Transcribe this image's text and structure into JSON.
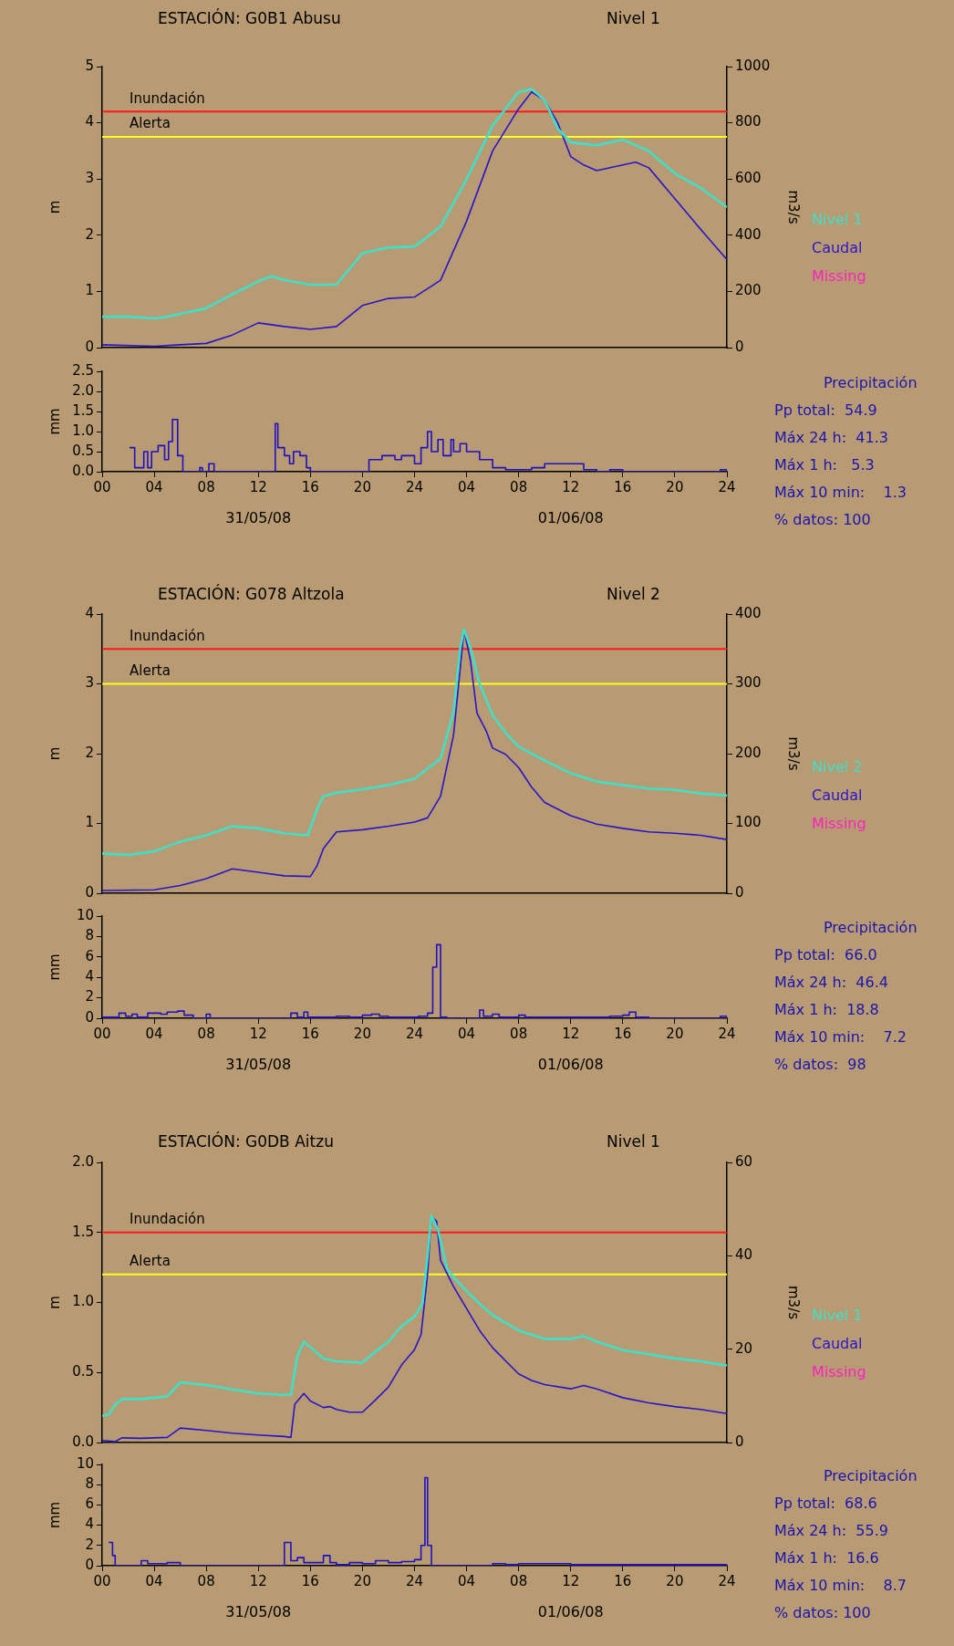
{
  "chart_data": [
    {
      "type": "line",
      "title": "ESTACIÓN: G0B1 Abusu",
      "subtitle": "Nivel 1",
      "ylabel": "m",
      "y2label": "m3/s",
      "legend": "right",
      "tick_labels": "y",
      "xlim": [
        "--05-31T00:00",
        "--06-02T00:00"
      ],
      "ylim": [
        0,
        5
      ],
      "yticks": [
        0,
        1,
        2,
        3,
        4,
        5
      ],
      "y2lim": [
        0,
        1000
      ],
      "y2ticks": [
        0,
        200,
        400,
        600,
        800,
        1000
      ],
      "ref_lines": [
        {
          "axis": "y",
          "value": 4.2,
          "label": "Inundación",
          "color": "#ff1a1a"
        },
        {
          "axis": "y",
          "value": 3.75,
          "label": "Alerta",
          "color": "#ffff20"
        }
      ],
      "series": [
        {
          "name": "Nivel 1",
          "color": "#3ee0c8",
          "x": [
            "--05-31T00:00",
            "--05-31T02:00",
            "--05-31T04:00",
            "--05-31T05:00",
            "--05-31T06:00",
            "--05-31T08:00",
            "--05-31T10:00",
            "--05-31T12:00",
            "--05-31T13:00",
            "--05-31T14:00",
            "--05-31T16:00",
            "--05-31T18:00",
            "--05-31T19:00",
            "--05-31T20:00",
            "--05-31T22:00",
            "--06-01T00:00",
            "--06-01T02:00",
            "--06-01T04:00",
            "--06-01T06:00",
            "--06-01T08:00",
            "--06-01T09:00",
            "--06-01T10:00",
            "--06-01T11:00",
            "--06-01T12:00",
            "--06-01T14:00",
            "--06-01T16:00",
            "--06-01T18:00",
            "--06-01T20:00",
            "--06-01T22:00",
            "--06-02T00:00"
          ],
          "values": [
            0.55,
            0.55,
            0.52,
            0.55,
            0.6,
            0.7,
            0.95,
            1.18,
            1.27,
            1.2,
            1.12,
            1.12,
            1.4,
            1.68,
            1.78,
            1.8,
            2.15,
            3.0,
            3.95,
            4.55,
            4.6,
            4.4,
            3.9,
            3.65,
            3.6,
            3.7,
            3.5,
            3.1,
            2.84,
            2.5
          ]
        },
        {
          "name": "Caudal",
          "color": "#2a14c8",
          "axis": "y2",
          "x": [
            "--05-31T00:00",
            "--05-31T04:00",
            "--05-31T06:00",
            "--05-31T08:00",
            "--05-31T10:00",
            "--05-31T12:00",
            "--05-31T14:00",
            "--05-31T16:00",
            "--05-31T18:00",
            "--05-31T20:00",
            "--05-31T22:00",
            "--06-01T00:00",
            "--06-01T02:00",
            "--06-01T04:00",
            "--06-01T06:00",
            "--06-01T08:00",
            "--06-01T09:00",
            "--06-01T10:00",
            "--06-01T11:00",
            "--06-01T12:00",
            "--06-01T13:00",
            "--06-01T14:00",
            "--06-01T16:00",
            "--06-01T17:00",
            "--06-01T18:00",
            "--06-01T20:00",
            "--06-01T22:00",
            "--06-02T00:00"
          ],
          "values": [
            10,
            5,
            10,
            15,
            45,
            88,
            75,
            65,
            75,
            150,
            175,
            180,
            240,
            450,
            700,
            850,
            910,
            880,
            800,
            680,
            650,
            630,
            650,
            660,
            640,
            530,
            420,
            313
          ]
        },
        {
          "name": "Missing",
          "color": "#ff20c0"
        }
      ]
    },
    {
      "type": "step",
      "ylabel": "mm",
      "color": "#2010c0",
      "xlim": [
        "--05-31T00:00",
        "--06-02T00:00"
      ],
      "xticks": [
        {
          "value": "--05-31T00:00",
          "label": "00"
        },
        {
          "value": "--05-31T04:00",
          "label": "04"
        },
        {
          "value": "--05-31T08:00",
          "label": "08"
        },
        {
          "value": "--05-31T12:00",
          "label": "12"
        },
        {
          "value": "--05-31T16:00",
          "label": "16"
        },
        {
          "value": "--05-31T20:00",
          "label": "20"
        },
        {
          "value": "--06-01T00:00",
          "label": "24"
        },
        {
          "value": "--06-01T04:00",
          "label": "04"
        },
        {
          "value": "--06-01T08:00",
          "label": "08"
        },
        {
          "value": "--06-01T12:00",
          "label": "12"
        },
        {
          "value": "--06-01T16:00",
          "label": "16"
        },
        {
          "value": "--06-01T20:00",
          "label": "20"
        },
        {
          "value": "--06-02T00:00",
          "label": "24"
        }
      ],
      "ylim": [
        0,
        2.5
      ],
      "yticks": [
        {
          "value": 0,
          "label": "0.0"
        },
        0.5,
        {
          "value": 1,
          "label": "1.0"
        },
        1.5,
        {
          "value": 2,
          "label": "2.0"
        },
        2.5
      ],
      "x": [
        "--05-31T02:06",
        "--05-31T02:30",
        "--05-31T03:12",
        "--05-31T03:30",
        "--05-31T03:48",
        "--05-31T04:18",
        "--05-31T04:48",
        "--05-31T05:06",
        "--05-31T05:24",
        "--05-31T05:48",
        "--05-31T06:12",
        "--05-31T07:30",
        "--05-31T07:42",
        "--05-31T08:12",
        "--05-31T08:36",
        "--05-31T13:18",
        "--05-31T13:30",
        "--05-31T14:00",
        "--05-31T14:24",
        "--05-31T14:42",
        "--05-31T15:12",
        "--05-31T15:42",
        "--05-31T16:00",
        "--05-31T20:30",
        "--05-31T21:30",
        "--05-31T22:30",
        "--05-31T23:00",
        "--06-01T00:00",
        "--06-01T00:30",
        "--06-01T01:00",
        "--06-01T01:18",
        "--06-01T01:48",
        "--06-01T02:12",
        "--06-01T02:48",
        "--06-01T03:00",
        "--06-01T03:30",
        "--06-01T04:00",
        "--06-01T05:00",
        "--06-01T06:00",
        "--06-01T07:00",
        "--06-01T09:00",
        "--06-01T10:00",
        "--06-01T13:00",
        "--06-01T14:00",
        "--06-01T15:00",
        "--06-01T16:00",
        "--06-01T23:30",
        "--06-02T00:00"
      ],
      "values": [
        0.6,
        0.1,
        0.5,
        0.1,
        0.5,
        0.65,
        0.3,
        0.75,
        1.3,
        0.4,
        0,
        0.1,
        0,
        0.2,
        0,
        1.2,
        0.6,
        0.4,
        0.2,
        0.5,
        0.4,
        0.1,
        0,
        0.3,
        0.4,
        0.3,
        0.4,
        0.2,
        0.6,
        1.0,
        0.5,
        0.8,
        0.4,
        0.8,
        0.5,
        0.7,
        0.5,
        0.3,
        0.1,
        0.05,
        0.1,
        0.2,
        0.05,
        0,
        0.05,
        0,
        0.05,
        0
      ],
      "annotations": [
        "31/05/08",
        "01/06/08"
      ]
    },
    {
      "type": "other",
      "title": "Precipitación",
      "annotations": [
        "Pp total:  54.9",
        "Máx 24 h:  41.3",
        "Máx 1 h:   5.3",
        "Máx 10 min:    1.3",
        "% datos: 100"
      ]
    },
    {
      "type": "line",
      "title": "ESTACIÓN: G078 Altzola",
      "subtitle": "Nivel 2",
      "ylabel": "m",
      "y2label": "m3/s",
      "legend": "right",
      "tick_labels": "y",
      "xlim": [
        "--05-31T00:00",
        "--06-02T00:00"
      ],
      "ylim": [
        0,
        4
      ],
      "yticks": [
        0,
        1,
        2,
        3,
        4
      ],
      "y2lim": [
        0,
        400
      ],
      "y2ticks": [
        0,
        100,
        200,
        300,
        400
      ],
      "ref_lines": [
        {
          "axis": "y",
          "value": 3.5,
          "label": "Inundación",
          "color": "#ff1a1a"
        },
        {
          "axis": "y",
          "value": 3.0,
          "label": "Alerta",
          "color": "#ffff20"
        }
      ],
      "series": [
        {
          "name": "Nivel 2",
          "color": "#3ee0c8",
          "x": [
            "--05-31T00:00",
            "--05-31T02:00",
            "--05-31T04:00",
            "--05-31T06:00",
            "--05-31T08:00",
            "--05-31T10:00",
            "--05-31T12:00",
            "--05-31T14:00",
            "--05-31T15:48",
            "--05-31T16:30",
            "--05-31T17:00",
            "--05-31T18:00",
            "--05-31T20:00",
            "--05-31T22:00",
            "--06-01T00:00",
            "--06-01T02:00",
            "--06-01T03:00",
            "--06-01T03:30",
            "--06-01T03:48",
            "--06-01T04:18",
            "--06-01T05:00",
            "--06-01T06:00",
            "--06-01T07:00",
            "--06-01T08:00",
            "--06-01T10:00",
            "--06-01T12:00",
            "--06-01T14:00",
            "--06-01T16:00",
            "--06-01T18:00",
            "--06-01T20:00",
            "--06-01T22:00",
            "--06-02T00:00"
          ],
          "values": [
            0.57,
            0.55,
            0.6,
            0.74,
            0.83,
            0.96,
            0.93,
            0.86,
            0.83,
            1.2,
            1.39,
            1.44,
            1.49,
            1.55,
            1.64,
            1.93,
            2.6,
            3.5,
            3.78,
            3.52,
            3.0,
            2.55,
            2.3,
            2.1,
            1.9,
            1.72,
            1.6,
            1.55,
            1.5,
            1.48,
            1.43,
            1.4
          ]
        },
        {
          "name": "Caudal",
          "color": "#2a14c8",
          "axis": "y2",
          "x": [
            "--05-31T00:00",
            "--05-31T04:00",
            "--05-31T06:00",
            "--05-31T08:00",
            "--05-31T10:00",
            "--05-31T12:00",
            "--05-31T14:00",
            "--05-31T16:00",
            "--05-31T16:30",
            "--05-31T17:00",
            "--05-31T18:00",
            "--05-31T20:00",
            "--05-31T22:00",
            "--06-01T00:00",
            "--06-01T01:00",
            "--06-01T02:00",
            "--06-01T03:00",
            "--06-01T03:30",
            "--06-01T03:48",
            "--06-01T04:18",
            "--06-01T04:48",
            "--06-01T05:30",
            "--06-01T06:00",
            "--06-01T07:00",
            "--06-01T08:00",
            "--06-01T09:00",
            "--06-01T10:00",
            "--06-01T12:00",
            "--06-01T14:00",
            "--06-01T16:00",
            "--06-01T18:00",
            "--06-01T20:00",
            "--06-01T22:00",
            "--06-02T00:00"
          ],
          "values": [
            4,
            5,
            11,
            21,
            35,
            30,
            25,
            24,
            39,
            64,
            88,
            91,
            96,
            102,
            108,
            139,
            227,
            320,
            378,
            333,
            258,
            233,
            208,
            199,
            180,
            152,
            130,
            111,
            99,
            93,
            88,
            86,
            83,
            77
          ]
        },
        {
          "name": "Missing",
          "color": "#ff20c0"
        }
      ]
    },
    {
      "type": "step",
      "ylabel": "mm",
      "color": "#2010c0",
      "xlim": [
        "--05-31T00:00",
        "--06-02T00:00"
      ],
      "xticks": [
        {
          "value": "--05-31T00:00",
          "label": "00"
        },
        {
          "value": "--05-31T04:00",
          "label": "04"
        },
        {
          "value": "--05-31T08:00",
          "label": "08"
        },
        {
          "value": "--05-31T12:00",
          "label": "12"
        },
        {
          "value": "--05-31T16:00",
          "label": "16"
        },
        {
          "value": "--05-31T20:00",
          "label": "20"
        },
        {
          "value": "--06-01T00:00",
          "label": "24"
        },
        {
          "value": "--06-01T04:00",
          "label": "04"
        },
        {
          "value": "--06-01T08:00",
          "label": "08"
        },
        {
          "value": "--06-01T12:00",
          "label": "12"
        },
        {
          "value": "--06-01T16:00",
          "label": "16"
        },
        {
          "value": "--06-01T20:00",
          "label": "20"
        },
        {
          "value": "--06-02T00:00",
          "label": "24"
        }
      ],
      "ylim": [
        0,
        10
      ],
      "yticks": [
        0,
        2,
        4,
        6,
        8,
        10
      ],
      "x": [
        "--05-31T00:00",
        "--05-31T01:18",
        "--05-31T01:48",
        "--05-31T02:18",
        "--05-31T02:42",
        "--05-31T03:30",
        "--05-31T04:30",
        "--05-31T05:00",
        "--05-31T05:48",
        "--05-31T06:18",
        "--05-31T07:00",
        "--05-31T08:00",
        "--05-31T08:18",
        "--05-31T14:30",
        "--05-31T15:00",
        "--05-31T15:30",
        "--05-31T15:48",
        "--05-31T17:00",
        "--05-31T18:00",
        "--05-31T19:00",
        "--05-31T20:00",
        "--05-31T20:42",
        "--05-31T21:18",
        "--05-31T22:00",
        "--05-31T23:30",
        "--06-01T00:18",
        "--06-01T01:00",
        "--06-01T01:24",
        "--06-01T01:42",
        "--06-01T02:00",
        "--06-01T02:30",
        "--06-01T05:00",
        "--06-01T05:18",
        "--06-01T06:00",
        "--06-01T06:30",
        "--06-01T08:00",
        "--06-01T08:30",
        "--06-01T10:00",
        "--06-01T12:00",
        "--06-01T15:00",
        "--06-01T16:00",
        "--06-01T16:30",
        "--06-01T17:00",
        "--06-01T18:00",
        "--06-01T23:30",
        "--06-02T00:00"
      ],
      "values": [
        0.1,
        0.5,
        0.2,
        0.4,
        0.1,
        0.5,
        0.4,
        0.6,
        0.7,
        0.3,
        0,
        0.4,
        0,
        0.5,
        0.1,
        0.6,
        0.1,
        0.1,
        0.2,
        0.1,
        0.3,
        0.4,
        0.2,
        0.1,
        0.1,
        0.2,
        0.5,
        5.0,
        7.2,
        0.1,
        0,
        0.8,
        0.2,
        0.4,
        0.1,
        0.3,
        0.1,
        0.1,
        0.1,
        0.2,
        0.3,
        0.6,
        0.1,
        0,
        0.2,
        0
      ],
      "annotations": [
        "31/05/08",
        "01/06/08"
      ]
    },
    {
      "type": "other",
      "title": "Precipitación",
      "annotations": [
        "Pp total:  66.0",
        "Máx 24 h:  46.4",
        "Máx 1 h:  18.8",
        "Máx 10 min:    7.2",
        "% datos:  98"
      ]
    },
    {
      "type": "line",
      "title": "ESTACIÓN: G0DB Aitzu",
      "subtitle": "Nivel 1",
      "ylabel": "m",
      "y2label": "m3/s",
      "legend": "right",
      "tick_labels": "y",
      "xlim": [
        "--05-31T00:00",
        "--06-02T00:00"
      ],
      "ylim": [
        0,
        2
      ],
      "yticks": [
        {
          "value": 0,
          "label": "0.0"
        },
        0.5,
        {
          "value": 1,
          "label": "1.0"
        },
        1.5,
        {
          "value": 2,
          "label": "2.0"
        }
      ],
      "y2lim": [
        0,
        60
      ],
      "y2ticks": [
        0,
        20,
        40,
        60
      ],
      "ref_lines": [
        {
          "axis": "y",
          "value": 1.5,
          "label": "Inundación",
          "color": "#ff1a1a"
        },
        {
          "axis": "y",
          "value": 1.2,
          "label": "Alerta",
          "color": "#ffff20"
        }
      ],
      "series": [
        {
          "name": "Nivel 1",
          "color": "#3ee0c8",
          "x": [
            "--05-31T00:00",
            "--05-31T00:30",
            "--05-31T01:00",
            "--05-31T01:30",
            "--05-31T03:00",
            "--05-31T05:00",
            "--05-31T06:00",
            "--05-31T08:00",
            "--05-31T10:00",
            "--05-31T12:00",
            "--05-31T14:00",
            "--05-31T14:30",
            "--05-31T15:00",
            "--05-31T15:30",
            "--05-31T16:00",
            "--05-31T17:00",
            "--05-31T18:00",
            "--05-31T20:00",
            "--05-31T21:00",
            "--05-31T22:00",
            "--05-31T23:00",
            "--06-01T00:00",
            "--06-01T00:36",
            "--06-01T01:00",
            "--06-01T01:18",
            "--06-01T01:48",
            "--06-01T02:30",
            "--06-01T03:00",
            "--06-01T04:00",
            "--06-01T05:00",
            "--06-01T06:00",
            "--06-01T08:00",
            "--06-01T10:00",
            "--06-01T12:00",
            "--06-01T13:00",
            "--06-01T14:00",
            "--06-01T16:00",
            "--06-01T18:00",
            "--06-01T20:00",
            "--06-01T22:00",
            "--06-02T00:00"
          ],
          "values": [
            0.19,
            0.2,
            0.27,
            0.31,
            0.31,
            0.33,
            0.43,
            0.41,
            0.38,
            0.35,
            0.34,
            0.34,
            0.62,
            0.72,
            0.68,
            0.6,
            0.58,
            0.57,
            0.65,
            0.72,
            0.83,
            0.9,
            0.99,
            1.33,
            1.62,
            1.52,
            1.24,
            1.18,
            1.08,
            0.99,
            0.91,
            0.8,
            0.74,
            0.74,
            0.76,
            0.72,
            0.66,
            0.63,
            0.6,
            0.58,
            0.55
          ]
        },
        {
          "name": "Caudal",
          "color": "#2a14c8",
          "axis": "y2",
          "x": [
            "--05-31T00:00",
            "--05-31T01:00",
            "--05-31T01:30",
            "--05-31T03:00",
            "--05-31T05:00",
            "--05-31T06:00",
            "--05-31T08:00",
            "--05-31T10:00",
            "--05-31T12:00",
            "--05-31T14:00",
            "--05-31T14:30",
            "--05-31T14:48",
            "--05-31T15:30",
            "--05-31T16:00",
            "--05-31T17:00",
            "--05-31T17:30",
            "--05-31T18:00",
            "--05-31T19:00",
            "--05-31T20:00",
            "--05-31T21:00",
            "--05-31T22:00",
            "--05-31T23:00",
            "--06-01T00:00",
            "--06-01T00:30",
            "--06-01T01:00",
            "--06-01T01:18",
            "--06-01T01:42",
            "--06-01T02:00",
            "--06-01T03:00",
            "--06-01T04:00",
            "--06-01T05:00",
            "--06-01T06:00",
            "--06-01T07:00",
            "--06-01T08:00",
            "--06-01T09:00",
            "--06-01T10:00",
            "--06-01T12:00",
            "--06-01T13:00",
            "--06-01T14:00",
            "--06-01T16:00",
            "--06-01T18:00",
            "--06-01T20:00",
            "--06-01T22:00",
            "--06-02T00:00"
          ],
          "values": [
            0.5,
            0.2,
            1.0,
            0.9,
            1.1,
            3.1,
            2.6,
            2.0,
            1.6,
            1.3,
            1.1,
            8.2,
            10.5,
            8.9,
            7.5,
            7.7,
            7.1,
            6.5,
            6.5,
            9.1,
            11.9,
            16.6,
            19.9,
            23.1,
            36,
            48.3,
            47.4,
            39,
            33.4,
            28.7,
            24,
            20.3,
            17.5,
            14.7,
            13.3,
            12.4,
            11.5,
            12.2,
            11.5,
            9.6,
            8.5,
            7.7,
            7.1,
            6.2
          ]
        },
        {
          "name": "Missing",
          "color": "#ff20c0"
        }
      ]
    },
    {
      "type": "step",
      "ylabel": "mm",
      "color": "#2010c0",
      "xlim": [
        "--05-31T00:00",
        "--06-02T00:00"
      ],
      "xticks": [
        {
          "value": "--05-31T00:00",
          "label": "00"
        },
        {
          "value": "--05-31T04:00",
          "label": "04"
        },
        {
          "value": "--05-31T08:00",
          "label": "08"
        },
        {
          "value": "--05-31T12:00",
          "label": "12"
        },
        {
          "value": "--05-31T16:00",
          "label": "16"
        },
        {
          "value": "--05-31T20:00",
          "label": "20"
        },
        {
          "value": "--06-01T00:00",
          "label": "24"
        },
        {
          "value": "--06-01T04:00",
          "label": "04"
        },
        {
          "value": "--06-01T08:00",
          "label": "08"
        },
        {
          "value": "--06-01T12:00",
          "label": "12"
        },
        {
          "value": "--06-01T16:00",
          "label": "16"
        },
        {
          "value": "--06-01T20:00",
          "label": "20"
        },
        {
          "value": "--06-02T00:00",
          "label": "24"
        }
      ],
      "ylim": [
        0,
        10
      ],
      "yticks": [
        0,
        2,
        4,
        6,
        8,
        10
      ],
      "x": [
        "--05-31T00:30",
        "--05-31T00:48",
        "--05-31T01:00",
        "--05-31T03:00",
        "--05-31T03:30",
        "--05-31T05:00",
        "--05-31T06:00",
        "--05-31T14:00",
        "--05-31T14:30",
        "--05-31T15:00",
        "--05-31T15:30",
        "--05-31T16:00",
        "--05-31T17:00",
        "--05-31T17:30",
        "--05-31T18:00",
        "--05-31T19:00",
        "--05-31T20:00",
        "--05-31T21:00",
        "--05-31T22:00",
        "--05-31T23:00",
        "--06-01T00:00",
        "--06-01T00:30",
        "--06-01T00:48",
        "--06-01T01:00",
        "--06-01T01:18",
        "--06-01T06:00",
        "--06-01T07:00",
        "--06-01T08:00",
        "--06-01T12:00",
        "--06-01T16:00",
        "--06-01T23:30",
        "--06-02T00:00"
      ],
      "values": [
        2.3,
        1.0,
        0,
        0.5,
        0.2,
        0.3,
        0,
        2.3,
        0.5,
        0.8,
        0.3,
        0.3,
        1.0,
        0.3,
        0.1,
        0.3,
        0.2,
        0.5,
        0.3,
        0.4,
        0.6,
        2.0,
        8.7,
        2.0,
        0,
        0.2,
        0.1,
        0.2,
        0.1,
        0.1,
        0.1,
        0
      ],
      "annotations": [
        "31/05/08",
        "01/06/08"
      ]
    },
    {
      "type": "other",
      "title": "Precipitación",
      "annotations": [
        "Pp total:  68.6",
        "Máx 24 h:  55.9",
        "Máx 1 h:  16.6",
        "Máx 10 min:    8.7",
        "% datos: 100"
      ]
    }
  ]
}
